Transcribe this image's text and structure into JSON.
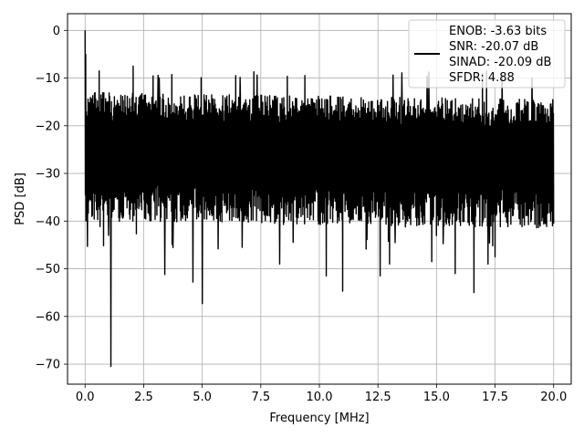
{
  "chart_data": {
    "type": "line",
    "title": "",
    "xlabel": "Frequency [MHz]",
    "ylabel": "PSD [dB]",
    "xlim": [
      -0.75,
      20.75
    ],
    "ylim": [
      -74.2,
      3.5
    ],
    "x_ticks": [
      0.0,
      2.5,
      5.0,
      7.5,
      10.0,
      12.5,
      15.0,
      17.5,
      20.0
    ],
    "x_tick_labels": [
      "0.0",
      "2.5",
      "5.0",
      "7.5",
      "10.0",
      "12.5",
      "15.0",
      "17.5",
      "20.0"
    ],
    "y_ticks": [
      0,
      -10,
      -20,
      -30,
      -40,
      -50,
      -60,
      -70
    ],
    "y_tick_labels": [
      "0",
      "−10",
      "−20",
      "−30",
      "−40",
      "−50",
      "−60",
      "−70"
    ],
    "grid": true,
    "legend_position": "top-right",
    "legend_entries": [
      "ENOB: -3.63 bits",
      "SNR: -20.07 dB",
      "SINAD: -20.09 dB",
      "SFDR: 4.88"
    ],
    "series": [
      {
        "color": "#000000",
        "x_range": [
          0.0,
          20.0
        ],
        "noise_floor_band": [
          -45.0,
          -9.0
        ],
        "dominant_range": [
          -36.0,
          -11.0
        ],
        "peaks": [
          {
            "x": 0.0,
            "y": 0.0
          },
          {
            "x": 0.03,
            "y": -5.0
          },
          {
            "x": 0.6,
            "y": -8.5
          },
          {
            "x": 2.05,
            "y": -7.5
          },
          {
            "x": 7.2,
            "y": -8.7
          }
        ],
        "dips": [
          {
            "x": 0.1,
            "y": -45.3
          },
          {
            "x": 1.1,
            "y": -70.5
          },
          {
            "x": 1.0,
            "y": -43.0
          },
          {
            "x": 3.4,
            "y": -51.2
          },
          {
            "x": 4.6,
            "y": -52.8
          },
          {
            "x": 5.0,
            "y": -57.3
          },
          {
            "x": 6.7,
            "y": -45.5
          },
          {
            "x": 8.3,
            "y": -49.0
          },
          {
            "x": 10.3,
            "y": -51.5
          },
          {
            "x": 11.0,
            "y": -54.7
          },
          {
            "x": 12.6,
            "y": -51.5
          },
          {
            "x": 13.0,
            "y": -49.0
          },
          {
            "x": 14.8,
            "y": -48.5
          },
          {
            "x": 15.8,
            "y": -51.0
          },
          {
            "x": 16.6,
            "y": -55.0
          },
          {
            "x": 17.2,
            "y": -49.0
          },
          {
            "x": 17.5,
            "y": -47.5
          }
        ]
      }
    ]
  }
}
